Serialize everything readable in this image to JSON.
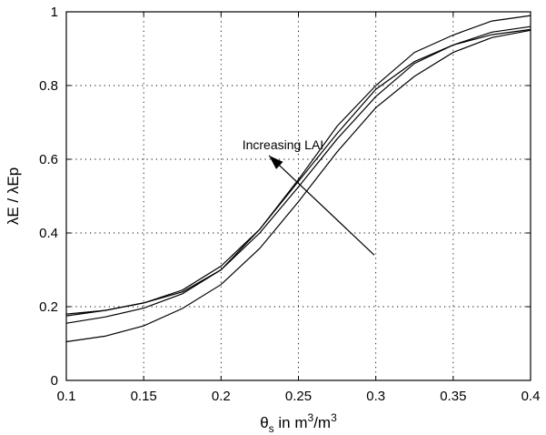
{
  "chart_data": {
    "type": "line",
    "xlabel": "θs in m3/m3",
    "xlabel_parts": {
      "theta": "θ",
      "sub": "s",
      "t1": " in m",
      "sup1": "3",
      "t2": "/m",
      "sup2": "3"
    },
    "ylabel": "λE / λEp",
    "xlim": [
      0.1,
      0.4
    ],
    "ylim": [
      0,
      1
    ],
    "x_ticks": [
      0.1,
      0.15,
      0.2,
      0.25,
      0.3,
      0.35,
      0.4
    ],
    "y_ticks": [
      0,
      0.2,
      0.4,
      0.6,
      0.8,
      1
    ],
    "x_tick_labels": [
      "0.1",
      "0.15",
      "0.2",
      "0.25",
      "0.3",
      "0.35",
      "0.4"
    ],
    "y_tick_labels": [
      "0",
      "0.2",
      "0.4",
      "0.6",
      "0.8",
      "1"
    ],
    "grid": true,
    "x": [
      0.1,
      0.125,
      0.15,
      0.175,
      0.2,
      0.225,
      0.25,
      0.275,
      0.3,
      0.325,
      0.35,
      0.375,
      0.4
    ],
    "series": [
      {
        "values": [
          0.105,
          0.12,
          0.148,
          0.195,
          0.26,
          0.358,
          0.485,
          0.62,
          0.74,
          0.825,
          0.89,
          0.93,
          0.95
        ]
      },
      {
        "values": [
          0.155,
          0.172,
          0.196,
          0.235,
          0.3,
          0.4,
          0.525,
          0.655,
          0.77,
          0.86,
          0.91,
          0.945,
          0.96
        ]
      },
      {
        "values": [
          0.175,
          0.19,
          0.21,
          0.245,
          0.31,
          0.41,
          0.54,
          0.67,
          0.79,
          0.865,
          0.91,
          0.938,
          0.952
        ]
      },
      {
        "values": [
          0.18,
          0.19,
          0.21,
          0.24,
          0.3,
          0.41,
          0.545,
          0.69,
          0.8,
          0.89,
          0.937,
          0.975,
          0.99
        ]
      }
    ],
    "annotations": [
      {
        "text": "Increasing LAI",
        "x": 0.24,
        "y": 0.64,
        "arrow_from": [
          0.299,
          0.34
        ],
        "arrow_to": [
          0.231,
          0.61
        ]
      }
    ]
  }
}
